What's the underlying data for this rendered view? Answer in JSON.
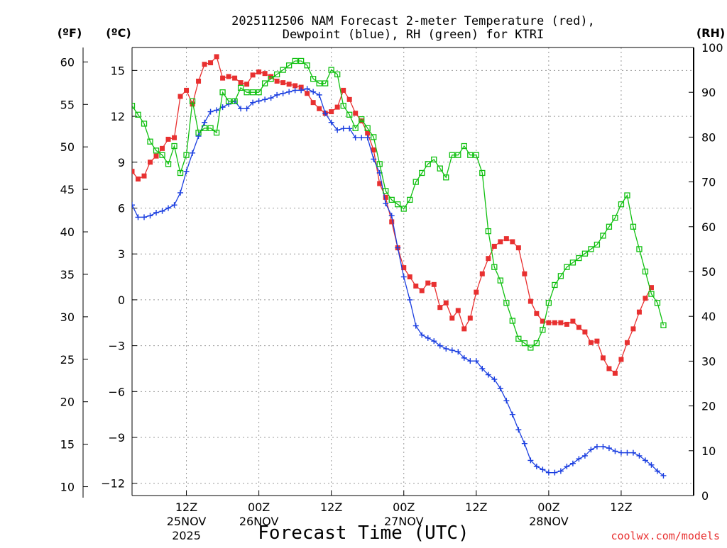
{
  "chart_data": {
    "type": "line",
    "title_line1": "2025112506 NAM Forecast 2-meter Temperature (red),",
    "title_line2": "Dewpoint (blue), RH (green) for KTRI",
    "xlabel": "Forecast Time (UTC)",
    "credit": "coolwx.com/models",
    "left_axis_unit_f": "(ºF)",
    "left_axis_unit_c": "(ºC)",
    "right_axis_unit": "(RH)",
    "x_range_hours": [
      -9,
      84
    ],
    "x_ticks": [
      {
        "hour": 0,
        "label": "12Z",
        "sub1": "25NOV",
        "sub2": "2025"
      },
      {
        "hour": 12,
        "label": "00Z",
        "sub1": "26NOV",
        "sub2": ""
      },
      {
        "hour": 24,
        "label": "12Z",
        "sub1": "",
        "sub2": ""
      },
      {
        "hour": 36,
        "label": "00Z",
        "sub1": "27NOV",
        "sub2": ""
      },
      {
        "hour": 48,
        "label": "12Z",
        "sub1": "",
        "sub2": ""
      },
      {
        "hour": 60,
        "label": "00Z",
        "sub1": "28NOV",
        "sub2": ""
      },
      {
        "hour": 72,
        "label": "12Z",
        "sub1": "",
        "sub2": ""
      }
    ],
    "y_celsius": {
      "range": [
        -12.8,
        16.5
      ],
      "ticks": [
        15,
        12,
        9,
        6,
        3,
        0,
        -3,
        -6,
        -9,
        -12
      ]
    },
    "y_fahrenheit_ticks": [
      60,
      55,
      50,
      45,
      40,
      35,
      30,
      25,
      20,
      15,
      10
    ],
    "y_rh": {
      "range": [
        0,
        100
      ],
      "ticks": [
        0,
        10,
        20,
        30,
        40,
        50,
        60,
        70,
        80,
        90,
        100
      ]
    },
    "grid": true,
    "colors": {
      "temperature": "#e83030",
      "dewpoint": "#1a3ee0",
      "rh": "#10c010",
      "credit": "#e83030",
      "grid": "#999999"
    },
    "series": [
      {
        "key": "temperature",
        "axis": "celsius",
        "marker": "filled-square",
        "points": [
          [
            -9,
            8.4
          ],
          [
            -8,
            7.9
          ],
          [
            -7,
            8.1
          ],
          [
            -6,
            9.0
          ],
          [
            -5,
            9.4
          ],
          [
            -4,
            9.9
          ],
          [
            -3,
            10.5
          ],
          [
            -2,
            10.6
          ],
          [
            -1,
            13.3
          ],
          [
            0,
            13.7
          ],
          [
            1,
            12.8
          ],
          [
            2,
            14.3
          ],
          [
            3,
            15.4
          ],
          [
            4,
            15.5
          ],
          [
            5,
            15.9
          ],
          [
            6,
            14.5
          ],
          [
            7,
            14.6
          ],
          [
            8,
            14.5
          ],
          [
            9,
            14.2
          ],
          [
            10,
            14.1
          ],
          [
            11,
            14.7
          ],
          [
            12,
            14.9
          ],
          [
            13,
            14.8
          ],
          [
            14,
            14.6
          ],
          [
            15,
            14.3
          ],
          [
            16,
            14.2
          ],
          [
            17,
            14.1
          ],
          [
            18,
            14.0
          ],
          [
            19,
            13.9
          ],
          [
            20,
            13.5
          ],
          [
            21,
            12.9
          ],
          [
            22,
            12.5
          ],
          [
            23,
            12.2
          ],
          [
            24,
            12.3
          ],
          [
            25,
            12.6
          ],
          [
            26,
            13.7
          ],
          [
            27,
            13.1
          ],
          [
            28,
            12.2
          ],
          [
            29,
            11.7
          ],
          [
            30,
            10.9
          ],
          [
            31,
            9.8
          ],
          [
            32,
            7.6
          ],
          [
            33,
            6.7
          ],
          [
            34,
            5.1
          ],
          [
            35,
            3.4
          ],
          [
            36,
            2.1
          ],
          [
            37,
            1.5
          ],
          [
            38,
            0.9
          ],
          [
            39,
            0.6
          ],
          [
            40,
            1.1
          ],
          [
            41,
            1.0
          ],
          [
            42,
            -0.5
          ],
          [
            43,
            -0.2
          ],
          [
            44,
            -1.2
          ],
          [
            45,
            -0.7
          ],
          [
            46,
            -1.9
          ],
          [
            47,
            -1.2
          ],
          [
            48,
            0.5
          ],
          [
            49,
            1.7
          ],
          [
            50,
            2.7
          ],
          [
            51,
            3.5
          ],
          [
            52,
            3.8
          ],
          [
            53,
            4.0
          ],
          [
            54,
            3.8
          ],
          [
            55,
            3.4
          ],
          [
            56,
            1.7
          ],
          [
            57,
            -0.1
          ],
          [
            58,
            -0.9
          ],
          [
            59,
            -1.4
          ],
          [
            60,
            -1.5
          ],
          [
            61,
            -1.5
          ],
          [
            62,
            -1.5
          ],
          [
            63,
            -1.6
          ],
          [
            64,
            -1.4
          ],
          [
            65,
            -1.8
          ],
          [
            66,
            -2.1
          ],
          [
            67,
            -2.8
          ],
          [
            68,
            -2.7
          ],
          [
            69,
            -3.8
          ],
          [
            70,
            -4.5
          ],
          [
            71,
            -4.8
          ],
          [
            72,
            -3.9
          ],
          [
            73,
            -2.8
          ],
          [
            74,
            -1.9
          ],
          [
            75,
            -0.8
          ],
          [
            76,
            0.1
          ],
          [
            77,
            0.8
          ]
        ]
      },
      {
        "key": "dewpoint",
        "axis": "celsius",
        "marker": "plus",
        "points": [
          [
            -9,
            6.2
          ],
          [
            -8,
            5.4
          ],
          [
            -7,
            5.4
          ],
          [
            -6,
            5.5
          ],
          [
            -5,
            5.7
          ],
          [
            -4,
            5.8
          ],
          [
            -3,
            6.0
          ],
          [
            -2,
            6.2
          ],
          [
            -1,
            7.0
          ],
          [
            0,
            8.4
          ],
          [
            1,
            9.6
          ],
          [
            2,
            10.7
          ],
          [
            3,
            11.6
          ],
          [
            4,
            12.3
          ],
          [
            5,
            12.4
          ],
          [
            6,
            12.6
          ],
          [
            7,
            12.8
          ],
          [
            8,
            13.0
          ],
          [
            9,
            12.5
          ],
          [
            10,
            12.5
          ],
          [
            11,
            12.9
          ],
          [
            12,
            13.0
          ],
          [
            13,
            13.1
          ],
          [
            14,
            13.2
          ],
          [
            15,
            13.4
          ],
          [
            16,
            13.5
          ],
          [
            17,
            13.6
          ],
          [
            18,
            13.7
          ],
          [
            19,
            13.7
          ],
          [
            20,
            13.8
          ],
          [
            21,
            13.6
          ],
          [
            22,
            13.4
          ],
          [
            23,
            12.2
          ],
          [
            24,
            11.6
          ],
          [
            25,
            11.1
          ],
          [
            26,
            11.2
          ],
          [
            27,
            11.2
          ],
          [
            28,
            10.6
          ],
          [
            29,
            10.6
          ],
          [
            30,
            10.6
          ],
          [
            31,
            9.2
          ],
          [
            32,
            8.3
          ],
          [
            33,
            6.3
          ],
          [
            34,
            5.5
          ],
          [
            35,
            3.4
          ],
          [
            36,
            1.5
          ],
          [
            37,
            0.0
          ],
          [
            38,
            -1.7
          ],
          [
            39,
            -2.3
          ],
          [
            40,
            -2.5
          ],
          [
            41,
            -2.7
          ],
          [
            42,
            -3.0
          ],
          [
            43,
            -3.2
          ],
          [
            44,
            -3.3
          ],
          [
            45,
            -3.4
          ],
          [
            46,
            -3.8
          ],
          [
            47,
            -4.0
          ],
          [
            48,
            -4.0
          ],
          [
            49,
            -4.5
          ],
          [
            50,
            -4.9
          ],
          [
            51,
            -5.2
          ],
          [
            52,
            -5.8
          ],
          [
            53,
            -6.6
          ],
          [
            54,
            -7.5
          ],
          [
            55,
            -8.5
          ],
          [
            56,
            -9.4
          ],
          [
            57,
            -10.5
          ],
          [
            58,
            -10.9
          ],
          [
            59,
            -11.1
          ],
          [
            60,
            -11.3
          ],
          [
            61,
            -11.3
          ],
          [
            62,
            -11.2
          ],
          [
            63,
            -10.9
          ],
          [
            64,
            -10.7
          ],
          [
            65,
            -10.4
          ],
          [
            66,
            -10.2
          ],
          [
            67,
            -9.8
          ],
          [
            68,
            -9.6
          ],
          [
            69,
            -9.6
          ],
          [
            70,
            -9.7
          ],
          [
            71,
            -9.9
          ],
          [
            72,
            -10.0
          ],
          [
            73,
            -10.0
          ],
          [
            74,
            -10.0
          ],
          [
            75,
            -10.2
          ],
          [
            76,
            -10.5
          ],
          [
            77,
            -10.8
          ],
          [
            78,
            -11.2
          ],
          [
            79,
            -11.5
          ]
        ]
      },
      {
        "key": "rh",
        "axis": "rh",
        "marker": "open-square",
        "points": [
          [
            -9,
            87
          ],
          [
            -8,
            85
          ],
          [
            -7,
            83
          ],
          [
            -6,
            79
          ],
          [
            -5,
            77
          ],
          [
            -4,
            76
          ],
          [
            -3,
            74
          ],
          [
            -2,
            78
          ],
          [
            -1,
            72
          ],
          [
            0,
            76
          ],
          [
            1,
            88
          ],
          [
            2,
            81
          ],
          [
            3,
            82
          ],
          [
            4,
            82
          ],
          [
            5,
            81
          ],
          [
            6,
            90
          ],
          [
            7,
            88
          ],
          [
            8,
            88
          ],
          [
            9,
            91
          ],
          [
            10,
            90
          ],
          [
            11,
            90
          ],
          [
            12,
            90
          ],
          [
            13,
            92
          ],
          [
            14,
            93
          ],
          [
            15,
            94
          ],
          [
            16,
            95
          ],
          [
            17,
            96
          ],
          [
            18,
            97
          ],
          [
            19,
            97
          ],
          [
            20,
            96
          ],
          [
            21,
            93
          ],
          [
            22,
            92
          ],
          [
            23,
            92
          ],
          [
            24,
            95
          ],
          [
            25,
            94
          ],
          [
            26,
            87
          ],
          [
            27,
            85
          ],
          [
            28,
            82
          ],
          [
            29,
            84
          ],
          [
            30,
            82
          ],
          [
            31,
            80
          ],
          [
            32,
            74
          ],
          [
            33,
            68
          ],
          [
            34,
            66
          ],
          [
            35,
            65
          ],
          [
            36,
            64
          ],
          [
            37,
            66
          ],
          [
            38,
            70
          ],
          [
            39,
            72
          ],
          [
            40,
            74
          ],
          [
            41,
            75
          ],
          [
            42,
            73
          ],
          [
            43,
            71
          ],
          [
            44,
            76
          ],
          [
            45,
            76
          ],
          [
            46,
            78
          ],
          [
            47,
            76
          ],
          [
            48,
            76
          ],
          [
            49,
            72
          ],
          [
            50,
            59
          ],
          [
            51,
            51
          ],
          [
            52,
            48
          ],
          [
            53,
            43
          ],
          [
            54,
            39
          ],
          [
            55,
            35
          ],
          [
            56,
            34
          ],
          [
            57,
            33
          ],
          [
            58,
            34
          ],
          [
            59,
            37
          ],
          [
            60,
            43
          ],
          [
            61,
            47
          ],
          [
            62,
            49
          ],
          [
            63,
            51
          ],
          [
            64,
            52
          ],
          [
            65,
            53
          ],
          [
            66,
            54
          ],
          [
            67,
            55
          ],
          [
            68,
            56
          ],
          [
            69,
            58
          ],
          [
            70,
            60
          ],
          [
            71,
            62
          ],
          [
            72,
            65
          ],
          [
            73,
            67
          ],
          [
            74,
            60
          ],
          [
            75,
            55
          ],
          [
            76,
            50
          ],
          [
            77,
            45
          ],
          [
            78,
            43
          ],
          [
            79,
            38
          ]
        ]
      }
    ]
  }
}
